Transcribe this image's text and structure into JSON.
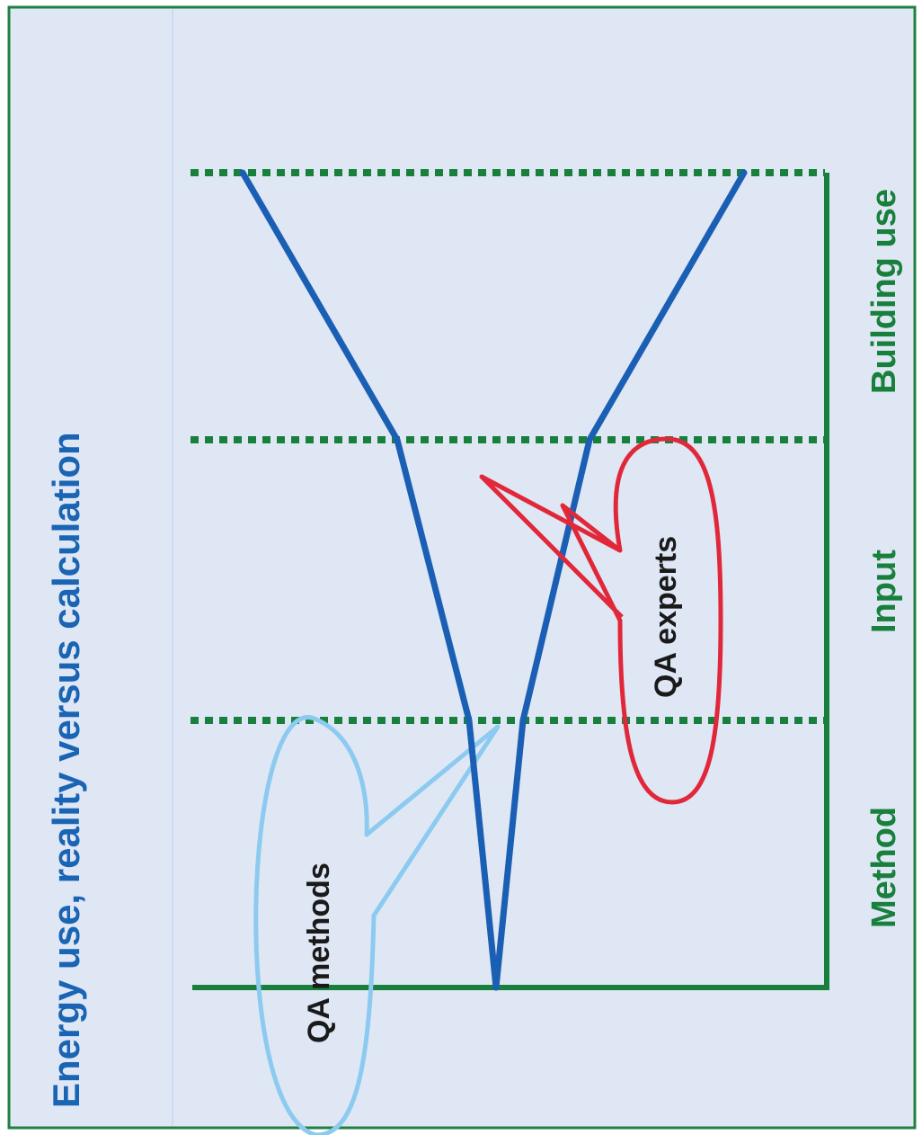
{
  "title": "Energy use,  reality versus calculation",
  "stages": {
    "method": "Method",
    "input": "Input",
    "building_use": "Building use"
  },
  "callouts": {
    "qa_methods": "QA methods",
    "qa_experts": "QA experts"
  },
  "colors": {
    "background": "#dfe7f5",
    "frame": "#1f8040",
    "title": "#1a64b4",
    "stage_labels": "#18803c",
    "funnel": "#1a5fb4",
    "dotted_lines": "#18803c",
    "axis": "#18803c",
    "qa_methods_callout": "#8ccaf0",
    "qa_experts_callout": "#e0283a",
    "callout_text": "#1a1a1a"
  }
}
